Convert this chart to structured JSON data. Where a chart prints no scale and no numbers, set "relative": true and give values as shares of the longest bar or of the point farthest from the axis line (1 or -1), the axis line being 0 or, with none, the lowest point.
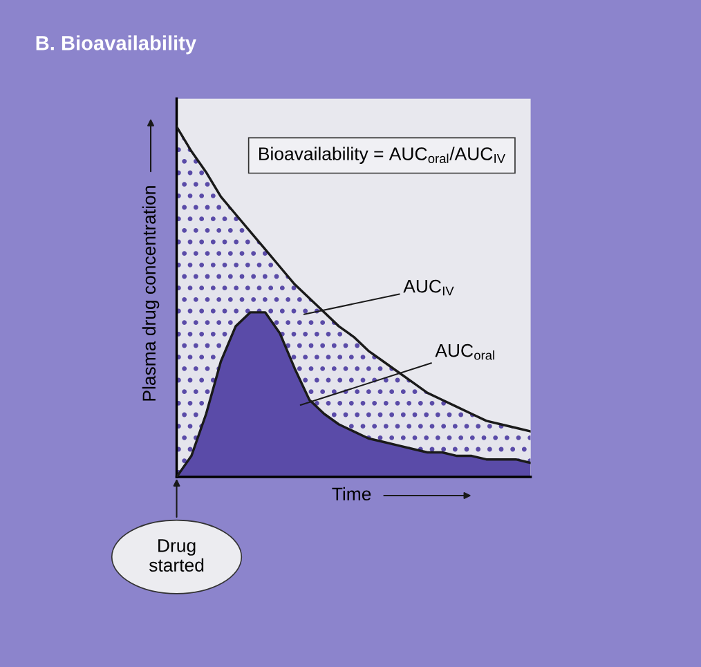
{
  "chart_data": {
    "type": "area",
    "title": "B. Bioavailability",
    "xlabel": "Time",
    "ylabel": "Plasma drug concentration",
    "relative": true,
    "categories": [
      null,
      null,
      null,
      null,
      null,
      null,
      null,
      null,
      null,
      null,
      null,
      null,
      null,
      null,
      null,
      null,
      null,
      null,
      null,
      null,
      null,
      null,
      null,
      null,
      null
    ],
    "series": [
      {
        "color": "#e4e4ec",
        "values": [
          1.0,
          0.93,
          0.87,
          0.8,
          0.75,
          0.7,
          0.65,
          0.6,
          0.55,
          0.51,
          0.47,
          0.43,
          0.4,
          0.36,
          0.33,
          0.3,
          0.27,
          0.24,
          0.22,
          0.2,
          0.18,
          0.16,
          0.15,
          0.14,
          0.13
        ]
      },
      {
        "color": "#5a4ba8",
        "values": [
          0,
          0.06,
          0.18,
          0.33,
          0.43,
          0.47,
          0.47,
          0.41,
          0.31,
          0.22,
          0.18,
          0.15,
          0.13,
          0.11,
          0.1,
          0.09,
          0.08,
          0.07,
          0.07,
          0.06,
          0.06,
          0.05,
          0.05,
          0.05,
          0.04
        ]
      }
    ],
    "annotations": [
      "Bioavailability = AUC$_{oral}$/AUC$_{IV}$",
      "Drug started",
      "AUC$_{IV}$",
      "AUC$_{oral}$"
    ]
  }
}
